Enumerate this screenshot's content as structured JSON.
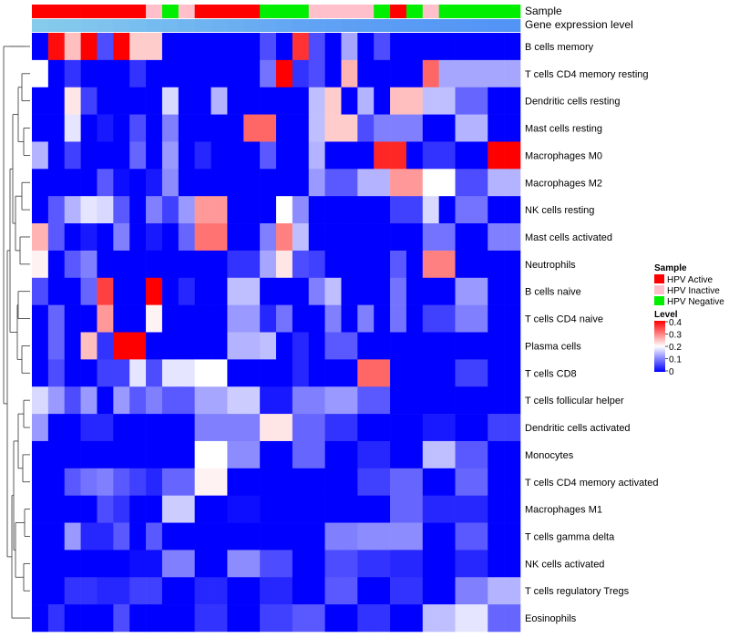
{
  "chart_data": {
    "type": "heatmap",
    "title": "",
    "annotation_tracks": [
      "Sample",
      "Gene expression level"
    ],
    "rows": [
      "B cells memory",
      "T cells CD4 memory resting",
      "Dendritic cells resting",
      "Mast cells resting",
      "Macrophages M0",
      "Macrophages M2",
      "NK cells resting",
      "Mast cells activated",
      "Neutrophils",
      "B cells naive",
      "T cells CD4 naive",
      "Plasma cells",
      "T cells CD8",
      "T cells follicular helper",
      "Dendritic cells activated",
      "Monocytes",
      "T cells CD4 memory activated",
      "Macrophages M1",
      "T cells gamma delta",
      "NK cells activated",
      "T cells regulatory  Tregs",
      "Eosinophils"
    ],
    "samples": [
      "HPV Active",
      "HPV Active",
      "HPV Active",
      "HPV Active",
      "HPV Active",
      "HPV Active",
      "HPV Active",
      "HPV Inactive",
      "HPV Negative",
      "HPV Inactive",
      "HPV Active",
      "HPV Active",
      "HPV Active",
      "HPV Active",
      "HPV Negative",
      "HPV Negative",
      "HPV Negative",
      "HPV Inactive",
      "HPV Inactive",
      "HPV Inactive",
      "HPV Inactive",
      "HPV Negative",
      "HPV Active",
      "HPV Negative",
      "HPV Inactive",
      "HPV Negative",
      "HPV Negative",
      "HPV Negative",
      "HPV Negative",
      "HPV Negative"
    ],
    "expression_level": [
      0.05,
      0.08,
      0.1,
      0.14,
      0.18,
      0.22,
      0.26,
      0.3,
      0.34,
      0.38,
      0.42,
      0.46,
      0.5,
      0.54,
      0.58,
      0.62,
      0.66,
      0.7,
      0.72,
      0.74,
      0.76,
      0.78,
      0.8,
      0.82,
      0.84,
      0.86,
      0.88,
      0.9,
      0.92,
      0.94
    ],
    "values": [
      [
        0.0,
        0.39,
        0.25,
        0.4,
        0.06,
        0.4,
        0.24,
        0.24,
        0.0,
        0.0,
        0.0,
        0.0,
        0.0,
        0.0,
        0.06,
        0.0,
        0.36,
        0.06,
        0.0,
        0.13,
        0.0,
        0.06,
        0.0,
        0.0,
        0.0,
        0.0,
        0.0,
        0.0,
        0.0,
        0.0
      ],
      [
        0.2,
        0.0,
        0.04,
        0.0,
        0.0,
        0.0,
        0.04,
        0.0,
        0.0,
        0.0,
        0.0,
        0.0,
        0.0,
        0.0,
        0.09,
        0.4,
        0.04,
        0.06,
        0.0,
        0.26,
        0.0,
        0.0,
        0.0,
        0.0,
        0.32,
        0.13,
        0.13,
        0.13,
        0.13,
        0.13
      ],
      [
        0.0,
        0.0,
        0.22,
        0.05,
        0.0,
        0.0,
        0.0,
        0.0,
        0.17,
        0.0,
        0.0,
        0.14,
        0.0,
        0.0,
        0.0,
        0.0,
        0.0,
        0.15,
        0.24,
        0.0,
        0.14,
        0.0,
        0.25,
        0.25,
        0.15,
        0.15,
        0.08,
        0.08,
        0.0,
        0.0
      ],
      [
        0.0,
        0.0,
        0.18,
        0.0,
        0.02,
        0.0,
        0.06,
        0.0,
        0.1,
        0.0,
        0.0,
        0.0,
        0.0,
        0.32,
        0.32,
        0.0,
        0.0,
        0.15,
        0.24,
        0.24,
        0.06,
        0.1,
        0.1,
        0.1,
        0.0,
        0.0,
        0.14,
        0.14,
        0.0,
        0.0
      ],
      [
        0.14,
        0.0,
        0.05,
        0.0,
        0.0,
        0.0,
        0.08,
        0.0,
        0.12,
        0.0,
        0.03,
        0.0,
        0.0,
        0.0,
        0.07,
        0.0,
        0.0,
        0.14,
        0.0,
        0.0,
        0.0,
        0.37,
        0.37,
        0.0,
        0.04,
        0.04,
        0.0,
        0.0,
        0.4,
        0.4
      ],
      [
        0.0,
        0.0,
        0.0,
        0.0,
        0.07,
        0.01,
        0.0,
        0.02,
        0.11,
        0.0,
        0.0,
        0.0,
        0.0,
        0.0,
        0.0,
        0.0,
        0.0,
        0.12,
        0.07,
        0.07,
        0.14,
        0.14,
        0.28,
        0.28,
        0.2,
        0.2,
        0.06,
        0.06,
        0.14,
        0.14
      ],
      [
        0.0,
        0.07,
        0.14,
        0.18,
        0.17,
        0.07,
        0.0,
        0.1,
        0.05,
        0.12,
        0.28,
        0.28,
        0.0,
        0.0,
        0.0,
        0.2,
        0.11,
        0.0,
        0.0,
        0.0,
        0.0,
        0.0,
        0.05,
        0.05,
        0.17,
        0.0,
        0.09,
        0.09,
        0.0,
        0.0
      ],
      [
        0.26,
        0.07,
        0.0,
        0.02,
        0.0,
        0.1,
        0.0,
        0.02,
        0.0,
        0.08,
        0.31,
        0.31,
        0.0,
        0.0,
        0.1,
        0.3,
        0.15,
        0.0,
        0.0,
        0.0,
        0.0,
        0.0,
        0.0,
        0.0,
        0.09,
        0.09,
        0.0,
        0.0,
        0.1,
        0.1
      ],
      [
        0.21,
        0.0,
        0.07,
        0.1,
        0.0,
        0.0,
        0.0,
        0.0,
        0.0,
        0.0,
        0.0,
        0.0,
        0.04,
        0.04,
        0.13,
        0.22,
        0.06,
        0.05,
        0.0,
        0.0,
        0.0,
        0.0,
        0.07,
        0.0,
        0.3,
        0.3,
        0.0,
        0.0,
        0.0,
        0.0
      ],
      [
        0.06,
        0.0,
        0.0,
        0.08,
        0.35,
        0.0,
        0.0,
        0.4,
        0.0,
        0.03,
        0.0,
        0.0,
        0.15,
        0.15,
        0.0,
        0.0,
        0.0,
        0.1,
        0.15,
        0.0,
        0.0,
        0.0,
        0.09,
        0.0,
        0.0,
        0.0,
        0.12,
        0.12,
        0.0,
        0.0
      ],
      [
        0.0,
        0.08,
        0.0,
        0.0,
        0.28,
        0.0,
        0.0,
        0.21,
        0.0,
        0.0,
        0.0,
        0.0,
        0.12,
        0.12,
        0.03,
        0.09,
        0.0,
        0.0,
        0.1,
        0.0,
        0.1,
        0.0,
        0.09,
        0.0,
        0.05,
        0.05,
        0.1,
        0.1,
        0.0,
        0.0
      ],
      [
        0.0,
        0.08,
        0.0,
        0.25,
        0.04,
        0.4,
        0.4,
        0.0,
        0.0,
        0.0,
        0.0,
        0.0,
        0.14,
        0.14,
        0.15,
        0.0,
        0.03,
        0.0,
        0.07,
        0.07,
        0.0,
        0.0,
        0.0,
        0.0,
        0.0,
        0.0,
        0.0,
        0.0,
        0.0,
        0.0
      ],
      [
        0.0,
        0.06,
        0.0,
        0.0,
        0.05,
        0.05,
        0.18,
        0.06,
        0.18,
        0.18,
        0.2,
        0.2,
        0.0,
        0.0,
        0.0,
        0.0,
        0.03,
        0.0,
        0.0,
        0.0,
        0.32,
        0.32,
        0.0,
        0.0,
        0.0,
        0.0,
        0.05,
        0.05,
        0.0,
        0.0
      ],
      [
        0.17,
        0.12,
        0.06,
        0.12,
        0.0,
        0.12,
        0.07,
        0.1,
        0.07,
        0.07,
        0.13,
        0.13,
        0.16,
        0.16,
        0.02,
        0.02,
        0.1,
        0.1,
        0.12,
        0.12,
        0.07,
        0.07,
        0.0,
        0.0,
        0.0,
        0.0,
        0.0,
        0.0,
        0.0,
        0.0
      ],
      [
        0.12,
        0.0,
        0.0,
        0.03,
        0.03,
        0.0,
        0.0,
        0.0,
        0.0,
        0.0,
        0.1,
        0.1,
        0.1,
        0.1,
        0.22,
        0.22,
        0.08,
        0.08,
        0.04,
        0.04,
        0.0,
        0.0,
        0.0,
        0.0,
        0.02,
        0.02,
        0.0,
        0.0,
        0.05,
        0.05
      ],
      [
        0.0,
        0.0,
        0.0,
        0.0,
        0.0,
        0.0,
        0.0,
        0.0,
        0.0,
        0.0,
        0.2,
        0.2,
        0.11,
        0.11,
        0.0,
        0.0,
        0.08,
        0.08,
        0.0,
        0.0,
        0.03,
        0.03,
        0.0,
        0.0,
        0.15,
        0.15,
        0.07,
        0.07,
        0.0,
        0.0
      ],
      [
        0.0,
        0.0,
        0.07,
        0.09,
        0.1,
        0.07,
        0.05,
        0.03,
        0.08,
        0.08,
        0.21,
        0.21,
        0.0,
        0.0,
        0.0,
        0.0,
        0.0,
        0.0,
        0.0,
        0.0,
        0.05,
        0.05,
        0.08,
        0.08,
        0.0,
        0.0,
        0.08,
        0.08,
        0.0,
        0.0
      ],
      [
        0.0,
        0.0,
        0.0,
        0.0,
        0.06,
        0.04,
        0.0,
        0.0,
        0.16,
        0.16,
        0.0,
        0.0,
        0.01,
        0.01,
        0.0,
        0.0,
        0.0,
        0.0,
        0.0,
        0.0,
        0.0,
        0.0,
        0.08,
        0.08,
        0.03,
        0.03,
        0.03,
        0.03,
        0.0,
        0.0
      ],
      [
        0.0,
        0.0,
        0.12,
        0.03,
        0.03,
        0.07,
        0.0,
        0.07,
        0.0,
        0.0,
        0.0,
        0.0,
        0.0,
        0.0,
        0.0,
        0.0,
        0.0,
        0.0,
        0.1,
        0.1,
        0.11,
        0.11,
        0.11,
        0.11,
        0.0,
        0.0,
        0.07,
        0.07,
        0.0,
        0.0
      ],
      [
        0.0,
        0.0,
        0.0,
        0.0,
        0.0,
        0.0,
        0.01,
        0.01,
        0.1,
        0.1,
        0.0,
        0.0,
        0.11,
        0.11,
        0.06,
        0.06,
        0.0,
        0.0,
        0.06,
        0.06,
        0.04,
        0.04,
        0.03,
        0.03,
        0.0,
        0.0,
        0.03,
        0.03,
        0.0,
        0.0
      ],
      [
        0.0,
        0.0,
        0.04,
        0.04,
        0.03,
        0.03,
        0.05,
        0.05,
        0.0,
        0.0,
        0.03,
        0.03,
        0.0,
        0.0,
        0.03,
        0.03,
        0.0,
        0.0,
        0.07,
        0.07,
        0.0,
        0.0,
        0.04,
        0.04,
        0.0,
        0.0,
        0.1,
        0.1,
        0.14,
        0.14
      ],
      [
        0.0,
        0.04,
        0.0,
        0.0,
        0.0,
        0.06,
        0.0,
        0.0,
        0.0,
        0.0,
        0.04,
        0.04,
        0.0,
        0.0,
        0.05,
        0.05,
        0.07,
        0.07,
        0.0,
        0.0,
        0.04,
        0.04,
        0.0,
        0.0,
        0.15,
        0.15,
        0.18,
        0.18,
        0.08,
        0.08
      ]
    ],
    "color_scale": {
      "min": 0,
      "max": 0.4,
      "low": "#0000ff",
      "mid": "#ffffff",
      "high": "#ff0000",
      "midpoint": 0.2
    },
    "legend": {
      "sample_title": "Sample",
      "sample_items": [
        {
          "label": "HPV Active",
          "color": "#ff0000"
        },
        {
          "label": "HPV Inactive",
          "color": "#ffc0cb"
        },
        {
          "label": "HPV Negative",
          "color": "#00ee00"
        }
      ],
      "level_title": "Level",
      "level_ticks": [
        "0.4",
        "0.3",
        "0.2",
        "0.1",
        "0"
      ],
      "level_low_color": "#87ceeb",
      "level_high_color": "#4f8ff7"
    }
  }
}
